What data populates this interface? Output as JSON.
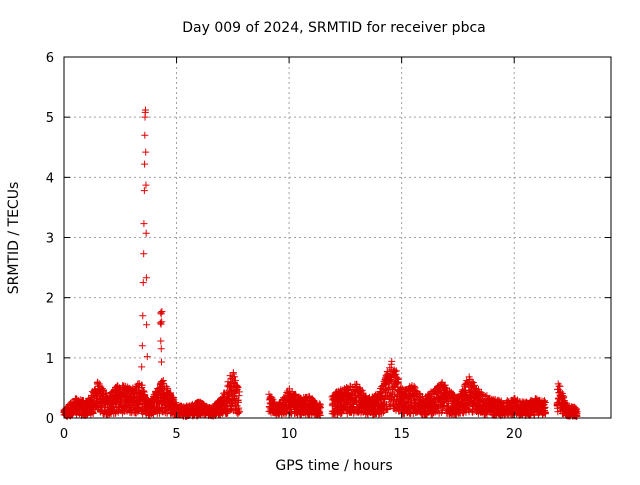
{
  "chart_data": {
    "type": "scatter",
    "title": "Day 009 of 2024, SRMTID for receiver pbca",
    "xlabel": "GPS time / hours",
    "ylabel": "SRMTID / TECUs",
    "xlim": [
      0,
      24.3
    ],
    "ylim": [
      0,
      6
    ],
    "xticks": [
      0,
      5,
      10,
      15,
      20
    ],
    "yticks": [
      0,
      1,
      2,
      3,
      4,
      5,
      6
    ],
    "grid": true,
    "grid_style": "dotted",
    "marker": "+",
    "colors": {
      "marker": "#e00000",
      "grid": "#a0a0a0",
      "axes": "#000000"
    },
    "data_gaps_hours": [
      [
        7.8,
        9.1
      ],
      [
        11.4,
        11.9
      ],
      [
        21.4,
        21.9
      ]
    ],
    "spikes": [
      {
        "x": 3.45,
        "y": 0.85
      },
      {
        "x": 3.48,
        "y": 1.2
      },
      {
        "x": 3.5,
        "y": 1.7
      },
      {
        "x": 3.52,
        "y": 2.25
      },
      {
        "x": 3.54,
        "y": 2.73
      },
      {
        "x": 3.55,
        "y": 3.23
      },
      {
        "x": 3.57,
        "y": 3.78
      },
      {
        "x": 3.58,
        "y": 4.22
      },
      {
        "x": 3.59,
        "y": 4.7
      },
      {
        "x": 3.6,
        "y": 5.0
      },
      {
        "x": 3.61,
        "y": 5.08
      },
      {
        "x": 3.62,
        "y": 5.12
      },
      {
        "x": 3.63,
        "y": 4.42
      },
      {
        "x": 3.64,
        "y": 3.87
      },
      {
        "x": 3.65,
        "y": 3.07
      },
      {
        "x": 3.66,
        "y": 2.33
      },
      {
        "x": 3.67,
        "y": 1.55
      },
      {
        "x": 3.7,
        "y": 1.02
      },
      {
        "x": 4.3,
        "y": 1.75
      },
      {
        "x": 4.32,
        "y": 1.73
      },
      {
        "x": 4.35,
        "y": 1.77
      },
      {
        "x": 4.28,
        "y": 1.58
      },
      {
        "x": 4.31,
        "y": 1.56
      },
      {
        "x": 4.34,
        "y": 1.6
      },
      {
        "x": 4.3,
        "y": 1.28
      },
      {
        "x": 4.32,
        "y": 1.15
      },
      {
        "x": 4.33,
        "y": 0.93
      }
    ],
    "baseline_envelope": [
      {
        "x": 0.0,
        "y": 0.12
      },
      {
        "x": 0.5,
        "y": 0.3
      },
      {
        "x": 1.0,
        "y": 0.25
      },
      {
        "x": 1.5,
        "y": 0.55
      },
      {
        "x": 2.0,
        "y": 0.35
      },
      {
        "x": 2.5,
        "y": 0.55
      },
      {
        "x": 3.0,
        "y": 0.45
      },
      {
        "x": 3.4,
        "y": 0.55
      },
      {
        "x": 3.8,
        "y": 0.25
      },
      {
        "x": 4.4,
        "y": 0.6
      },
      {
        "x": 5.0,
        "y": 0.22
      },
      {
        "x": 5.5,
        "y": 0.18
      },
      {
        "x": 6.0,
        "y": 0.25
      },
      {
        "x": 6.5,
        "y": 0.15
      },
      {
        "x": 7.0,
        "y": 0.3
      },
      {
        "x": 7.5,
        "y": 0.75
      },
      {
        "x": 7.7,
        "y": 0.5
      },
      {
        "x": 9.2,
        "y": 0.35
      },
      {
        "x": 9.5,
        "y": 0.2
      },
      {
        "x": 10.0,
        "y": 0.45
      },
      {
        "x": 10.5,
        "y": 0.3
      },
      {
        "x": 11.0,
        "y": 0.35
      },
      {
        "x": 11.3,
        "y": 0.2
      },
      {
        "x": 12.0,
        "y": 0.4
      },
      {
        "x": 12.5,
        "y": 0.45
      },
      {
        "x": 13.0,
        "y": 0.55
      },
      {
        "x": 13.5,
        "y": 0.3
      },
      {
        "x": 14.0,
        "y": 0.4
      },
      {
        "x": 14.6,
        "y": 0.9
      },
      {
        "x": 15.0,
        "y": 0.45
      },
      {
        "x": 15.5,
        "y": 0.5
      },
      {
        "x": 16.0,
        "y": 0.3
      },
      {
        "x": 16.8,
        "y": 0.55
      },
      {
        "x": 17.5,
        "y": 0.3
      },
      {
        "x": 18.0,
        "y": 0.65
      },
      {
        "x": 18.5,
        "y": 0.4
      },
      {
        "x": 19.0,
        "y": 0.3
      },
      {
        "x": 19.5,
        "y": 0.25
      },
      {
        "x": 20.0,
        "y": 0.3
      },
      {
        "x": 20.5,
        "y": 0.25
      },
      {
        "x": 21.0,
        "y": 0.3
      },
      {
        "x": 21.3,
        "y": 0.25
      },
      {
        "x": 22.0,
        "y": 0.55
      },
      {
        "x": 22.3,
        "y": 0.2
      },
      {
        "x": 22.8,
        "y": 0.15
      }
    ]
  }
}
